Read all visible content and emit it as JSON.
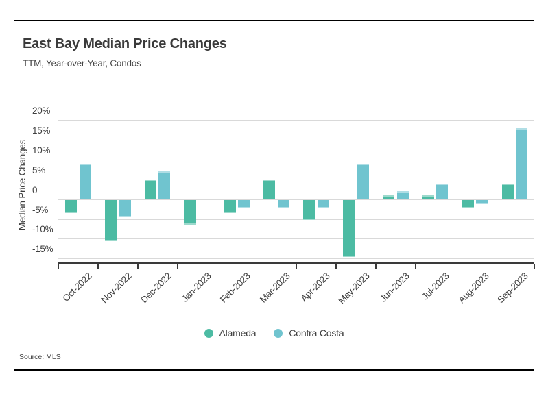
{
  "header": {
    "title": "East Bay Median Price Changes",
    "subtitle": "TTM, Year-over-Year, Condos"
  },
  "source": "Source: MLS",
  "colors": {
    "alameda": "#4cbba3",
    "contra_costa": "#70c4cf",
    "axis_line": "#3a3a3a",
    "gridline": "#d9d9d9",
    "text": "#3d3d3d"
  },
  "chart_data": {
    "type": "bar",
    "title": "East Bay Median Price Changes",
    "subtitle": "TTM, Year-over-Year, Condos",
    "xlabel": "",
    "ylabel": "Median Price Changes",
    "categories": [
      "Oct-2022",
      "Nov-2022",
      "Dec-2022",
      "Jan-2023",
      "Feb-2023",
      "Mar-2023",
      "Apr-2023",
      "May-2023",
      "Jun-2023",
      "Jul-2023",
      "Aug-2023",
      "Sep-2023"
    ],
    "series": [
      {
        "name": "Alameda",
        "color": "#4cbba3",
        "values": [
          -3.4,
          -10.4,
          4.9,
          -6.3,
          -3.3,
          4.9,
          -5.1,
          -14.4,
          1.0,
          1.0,
          -2.1,
          3.9
        ]
      },
      {
        "name": "Contra Costa",
        "color": "#70c4cf",
        "values": [
          8.9,
          -4.4,
          7.0,
          0.0,
          -2.2,
          -2.2,
          -2.1,
          8.9,
          2.1,
          4.0,
          -1.1,
          17.9
        ]
      }
    ],
    "y_ticks": [
      "20%",
      "15%",
      "10%",
      "5%",
      "0",
      "-5%",
      "-10%",
      "-15%"
    ],
    "y_tick_values": [
      20,
      15,
      10,
      5,
      0,
      -5,
      -10,
      -15
    ],
    "ylim": [
      -16.5,
      21.8
    ],
    "grid": "horizontal",
    "legend_position": "bottom",
    "units": "percent"
  },
  "legend": {
    "items": [
      {
        "label": "Alameda",
        "color": "#4cbba3"
      },
      {
        "label": "Contra Costa",
        "color": "#70c4cf"
      }
    ]
  }
}
